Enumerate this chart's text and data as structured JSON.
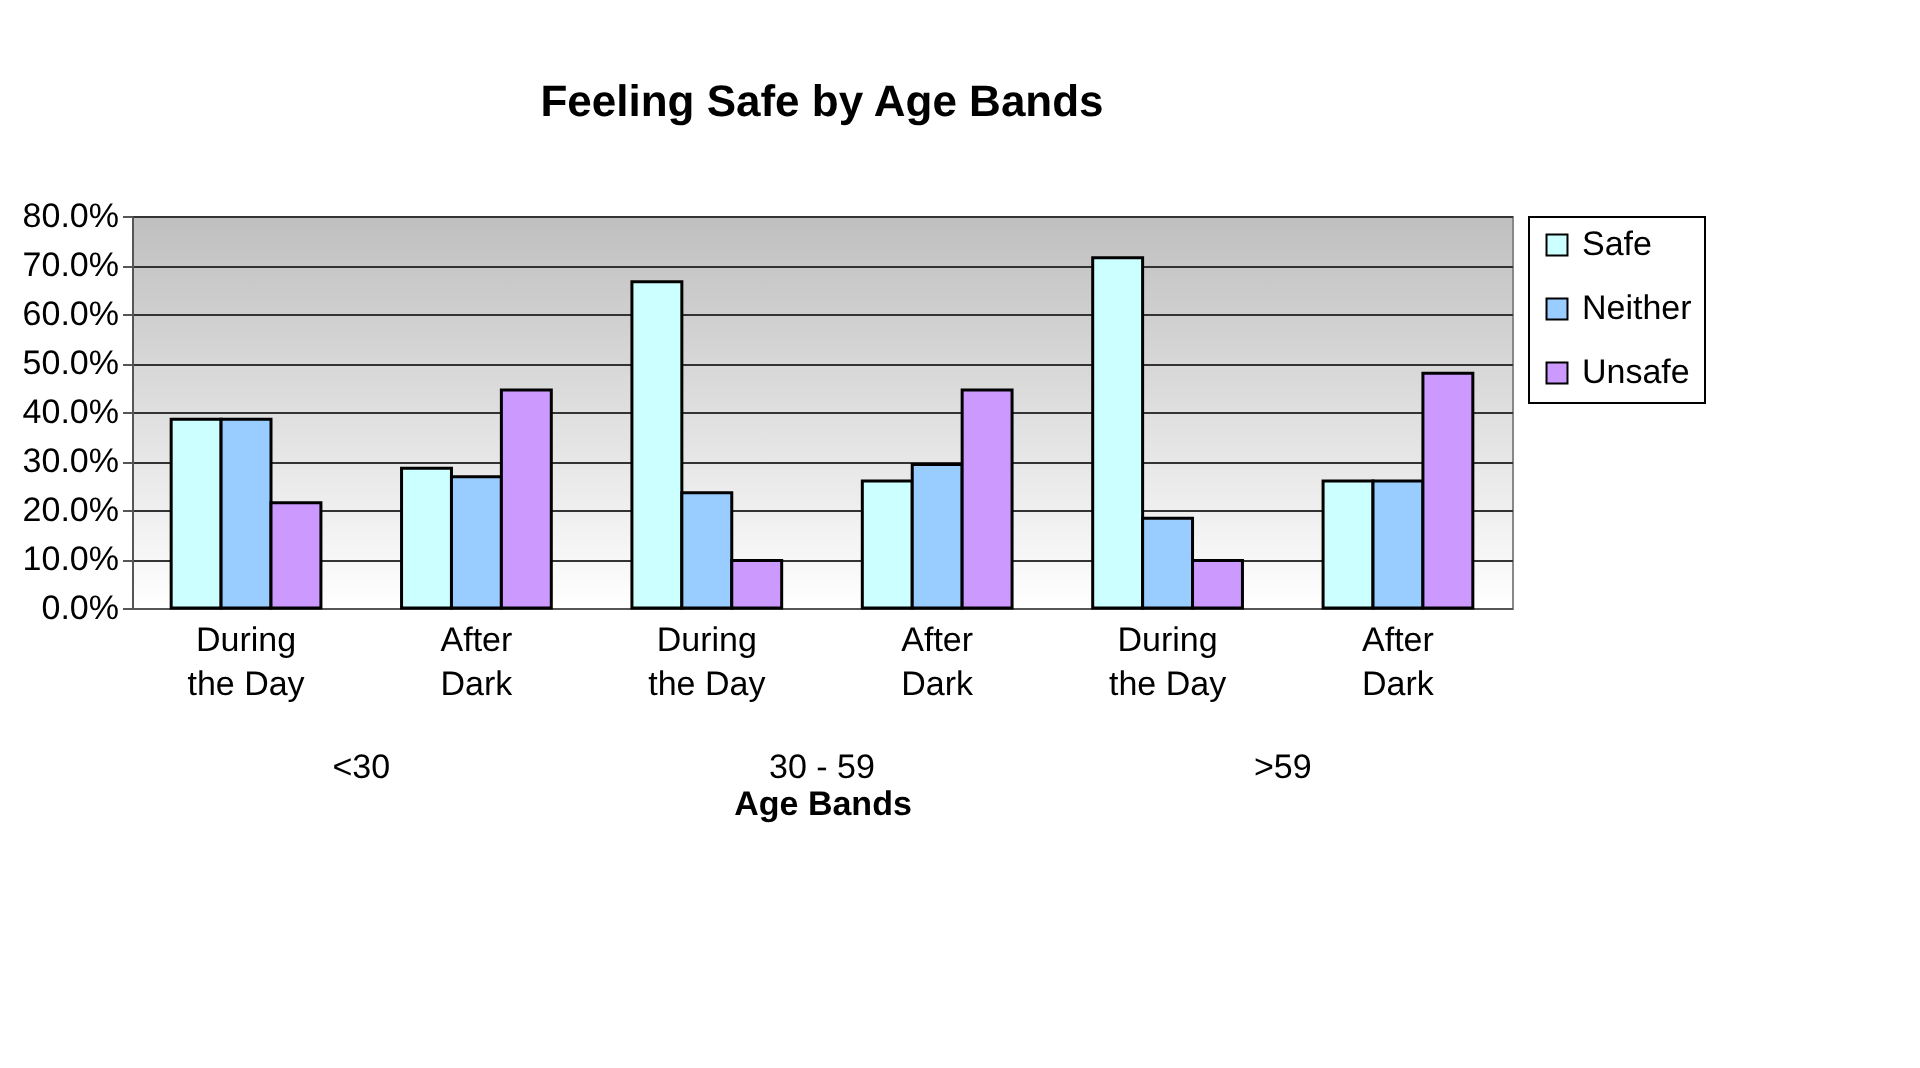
{
  "chart_data": {
    "type": "bar",
    "title": "Feeling Safe by Age Bands",
    "xlabel": "Age Bands",
    "categories": [
      "During the Day",
      "After Dark",
      "During the Day",
      "After Dark",
      "During the Day",
      "After Dark"
    ],
    "annotations": [
      "<30",
      "30 - 59",
      ">59"
    ],
    "series": [
      {
        "name": "Safe",
        "color": "#ccffff",
        "values": [
          38.5,
          28.5,
          66.6,
          25.9,
          71.5,
          25.9
        ]
      },
      {
        "name": "Neither",
        "color": "#99ccff",
        "values": [
          38.5,
          26.8,
          23.5,
          29.3,
          18.3,
          25.9
        ]
      },
      {
        "name": "Unsafe",
        "color": "#cc99ff",
        "values": [
          21.5,
          44.5,
          9.7,
          44.5,
          9.7,
          47.9
        ]
      }
    ],
    "ylim": [
      0,
      80
    ],
    "yticks": [
      {
        "value": 0,
        "label": "0.0%"
      },
      {
        "value": 10,
        "label": "10.0%"
      },
      {
        "value": 20,
        "label": "20.0%"
      },
      {
        "value": 30,
        "label": "30.0%"
      },
      {
        "value": 40,
        "label": "40.0%"
      },
      {
        "value": 50,
        "label": "50.0%"
      },
      {
        "value": 60,
        "label": "60.0%"
      },
      {
        "value": 70,
        "label": "70.0%"
      },
      {
        "value": 80,
        "label": "80.0%"
      }
    ],
    "grid": "y",
    "legend": "right"
  }
}
